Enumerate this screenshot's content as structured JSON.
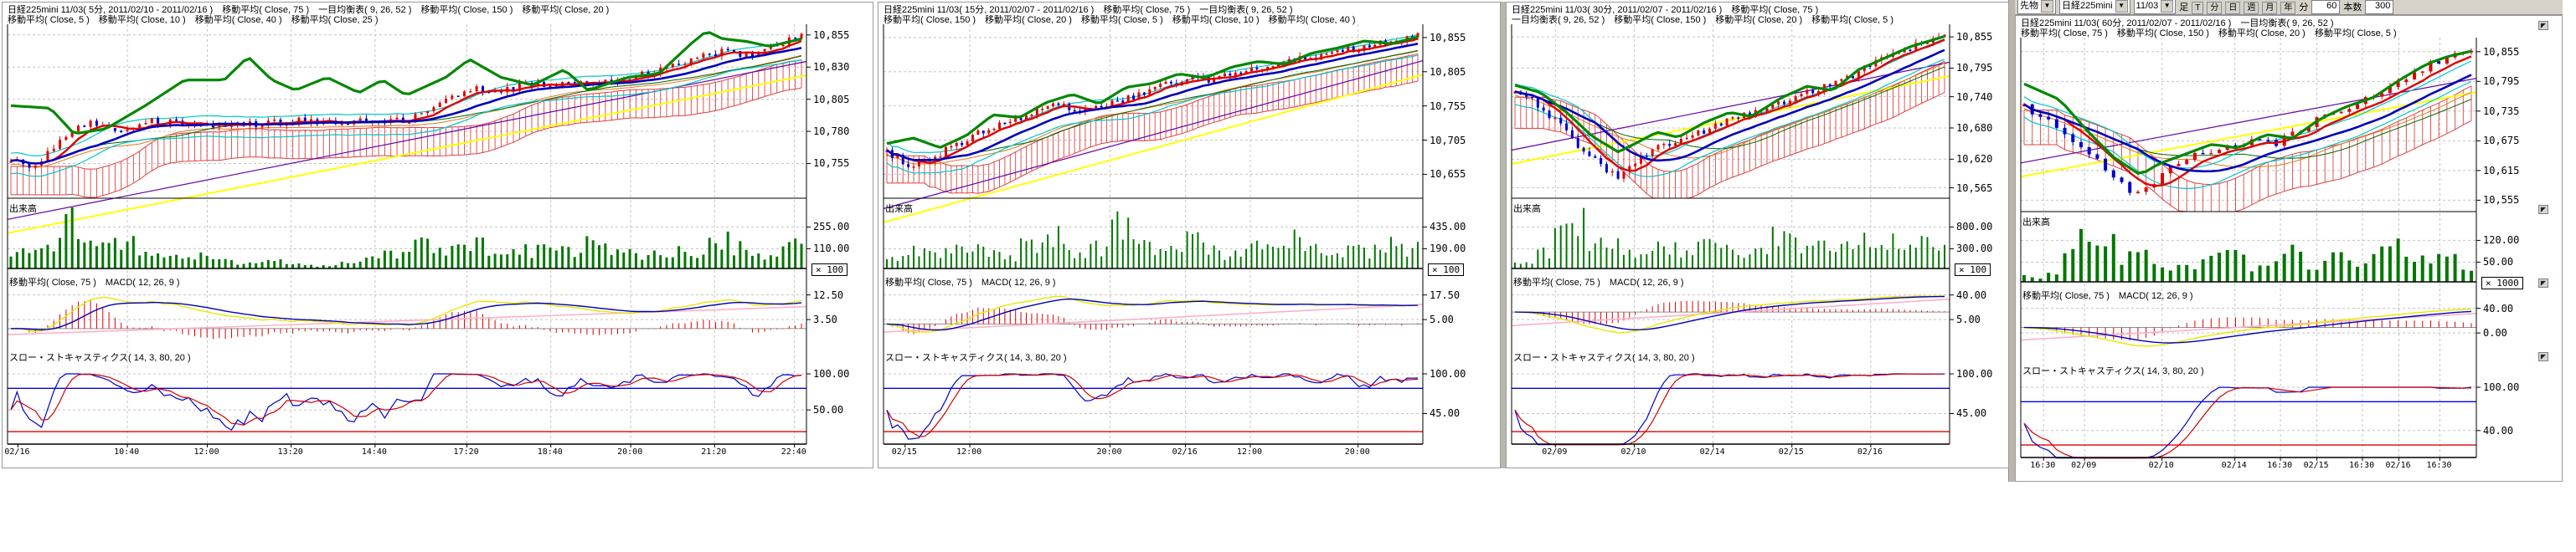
{
  "app": {
    "name": "chart-workspace",
    "background": "#ffffff"
  },
  "toolbar": {
    "category_value": "先物",
    "symbol_value": "日経225mini",
    "contract_value": "11/03",
    "bar_type_label": "足",
    "period_buttons": [
      "T",
      "分",
      "日",
      "週",
      "月",
      "年"
    ],
    "minutes_label": "分",
    "minutes_value": "60",
    "bars_label": "本数",
    "bars_value": "300"
  },
  "panels": [
    {
      "header1": "日経225mini 11/03( 5分, 2011/02/10 - 2011/02/16 )　移動平均( Close, 75 )　一目均衡表( 9, 26, 52 )　移動平均( Close, 150 )　移動平均( Close, 20 )",
      "header2": "移動平均( Close, 5 )　移動平均( Close, 10 )　移動平均( Close, 40 )　移動平均( Close, 25 )",
      "volume_label": "出来高",
      "macd_label": "移動平均( Close, 75 )　MACD( 12, 26, 9 )",
      "stoch_label": "スロー・ストキャスティクス( 14, 3, 80, 20 )",
      "multiplier_badge": "× 100",
      "price_ticks": [
        "10,855",
        "10,830",
        "10,805",
        "10,780",
        "10,755"
      ],
      "volume_ticks": [
        "255.00",
        "110.00"
      ],
      "macd_ticks": [
        "12.50",
        "3.50"
      ],
      "stoch_ticks": [
        "100.00",
        "50.00"
      ],
      "time_labels": [
        "02/16",
        "10:40",
        "12:00",
        "13:20",
        "14:40",
        "17:20",
        "18:40",
        "20:00",
        "21:20",
        "22:40"
      ]
    },
    {
      "header1": "日経225mini 11/03( 15分, 2011/02/07 - 2011/02/16 )　移動平均( Close, 75 )　一目均衡表( 9, 26, 52 )",
      "header2": "移動平均( Close, 150 )　移動平均( Close, 20 )　移動平均( Close, 5 )　移動平均( Close, 10 )　移動平均( Close, 40 )",
      "volume_label": "出来高",
      "macd_label": "移動平均( Close, 75 )　MACD( 12, 26, 9 )",
      "stoch_label": "スロー・ストキャスティクス( 14, 3, 80, 20 )",
      "multiplier_badge": "× 100",
      "price_ticks": [
        "10,855",
        "10,805",
        "10,755",
        "10,705",
        "10,655"
      ],
      "volume_ticks": [
        "435.00",
        "190.00"
      ],
      "macd_ticks": [
        "17.50",
        "5.00"
      ],
      "stoch_ticks": [
        "100.00",
        "45.00"
      ],
      "time_labels": [
        "02/15",
        "12:00",
        "20:00",
        "02/16",
        "12:00",
        "20:00"
      ]
    },
    {
      "header1": "日経225mini 11/03( 30分, 2011/02/07 - 2011/02/16 )　移動平均( Close, 75 )",
      "header2": "一目均衡表( 9, 26, 52 )　移動平均( Close, 150 )　移動平均( Close, 20 )　移動平均( Close, 5 )",
      "volume_label": "出来高",
      "macd_label": "移動平均( Close, 75 )　MACD( 12, 26, 9 )",
      "stoch_label": "スロー・ストキャスティクス( 14, 3, 80, 20 )",
      "multiplier_badge": "× 100",
      "price_ticks": [
        "10,855",
        "10,795",
        "10,740",
        "10,680",
        "10,620",
        "10,565"
      ],
      "volume_ticks": [
        "800.00",
        "300.00"
      ],
      "macd_ticks": [
        "40.00",
        "5.00"
      ],
      "stoch_ticks": [
        "100.00",
        "45.00"
      ],
      "time_labels": [
        "02/09",
        "02/10",
        "02/14",
        "02/15",
        "02/16"
      ]
    },
    {
      "header1": "日経225mini 11/03( 60分, 2011/02/07 - 2011/02/16 )　一目均衡表( 9, 26, 52 )",
      "header2": "移動平均( Close, 75 )　移動平均( Close, 150 )　移動平均( Close, 20 )　移動平均( Close, 5 )",
      "volume_label": "出来高",
      "macd_label": "移動平均( Close, 75 )　MACD( 12, 26, 9 )",
      "stoch_label": "スロー・ストキャスティクス( 14, 3, 80, 20 )",
      "multiplier_badge": "× 1000",
      "price_ticks": [
        "10,855",
        "10,795",
        "10,735",
        "10,675",
        "10,615",
        "10,555"
      ],
      "volume_ticks": [
        "120.00",
        "50.00"
      ],
      "macd_ticks": [
        "40.00",
        "0.00"
      ],
      "stoch_ticks": [
        "100.00",
        "40.00"
      ],
      "time_labels": [
        "16:30",
        "02/09",
        "02/10",
        "02/14",
        "16:30",
        "02/15",
        "16:30",
        "02/16",
        "16:30"
      ]
    }
  ],
  "chart_data": [
    {
      "type": "candlestick+volume+macd+stochastics",
      "symbol": "日経225mini 11/03",
      "interval": "5分",
      "range": "2011/02/10 - 2011/02/16",
      "price_axis": {
        "tick_values": [
          10855,
          10830,
          10805,
          10780,
          10755
        ],
        "view": [
          10862,
          10728
        ]
      },
      "stoch_thresholds": [
        80,
        20
      ],
      "close_anchors": [
        [
          0,
          10760
        ],
        [
          0.03,
          10750
        ],
        [
          0.06,
          10772
        ],
        [
          0.1,
          10788
        ],
        [
          0.14,
          10780
        ],
        [
          0.18,
          10788
        ],
        [
          0.22,
          10786
        ],
        [
          0.27,
          10784
        ],
        [
          0.32,
          10786
        ],
        [
          0.37,
          10788
        ],
        [
          0.42,
          10786
        ],
        [
          0.46,
          10790
        ],
        [
          0.5,
          10788
        ],
        [
          0.54,
          10800
        ],
        [
          0.58,
          10814
        ],
        [
          0.62,
          10812
        ],
        [
          0.66,
          10818
        ],
        [
          0.7,
          10816
        ],
        [
          0.74,
          10818
        ],
        [
          0.78,
          10820
        ],
        [
          0.82,
          10828
        ],
        [
          0.86,
          10836
        ],
        [
          0.9,
          10842
        ],
        [
          0.94,
          10840
        ],
        [
          0.97,
          10848
        ],
        [
          1,
          10854
        ]
      ],
      "green_anchors": [
        [
          0,
          10800
        ],
        [
          0.05,
          10798
        ],
        [
          0.08,
          10778
        ],
        [
          0.12,
          10782
        ],
        [
          0.17,
          10800
        ],
        [
          0.22,
          10820
        ],
        [
          0.27,
          10820
        ],
        [
          0.3,
          10838
        ],
        [
          0.33,
          10820
        ],
        [
          0.36,
          10812
        ],
        [
          0.4,
          10822
        ],
        [
          0.44,
          10810
        ],
        [
          0.47,
          10820
        ],
        [
          0.5,
          10808
        ],
        [
          0.55,
          10822
        ],
        [
          0.58,
          10836
        ],
        [
          0.62,
          10822
        ],
        [
          0.66,
          10816
        ],
        [
          0.7,
          10828
        ],
        [
          0.73,
          10812
        ],
        [
          0.78,
          10822
        ],
        [
          0.82,
          10825
        ],
        [
          0.86,
          10848
        ],
        [
          0.88,
          10858
        ],
        [
          0.9,
          10852
        ],
        [
          0.93,
          10850
        ],
        [
          0.96,
          10846
        ],
        [
          1,
          10852
        ]
      ],
      "volume_profile": [
        30,
        55,
        90,
        40,
        48,
        35,
        20,
        28,
        14,
        10,
        16,
        8,
        6,
        10,
        18,
        26,
        48,
        38,
        60,
        30,
        36,
        42,
        34,
        52,
        44,
        26,
        38,
        30,
        62,
        40,
        28,
        46
      ],
      "time_fracs": [
        0.013,
        0.15,
        0.25,
        0.355,
        0.46,
        0.575,
        0.68,
        0.78,
        0.885,
        0.985
      ],
      "cloud_depth": 22
    },
    {
      "type": "candlestick+volume+macd+stochastics",
      "symbol": "日経225mini 11/03",
      "interval": "15分",
      "range": "2011/02/07 - 2011/02/16",
      "price_axis": {
        "tick_values": [
          10855,
          10805,
          10755,
          10705,
          10655
        ],
        "view": [
          10872,
          10620
        ]
      },
      "stoch_thresholds": [
        80,
        20
      ],
      "close_anchors": [
        [
          0,
          10688
        ],
        [
          0.04,
          10668
        ],
        [
          0.08,
          10678
        ],
        [
          0.14,
          10702
        ],
        [
          0.2,
          10726
        ],
        [
          0.26,
          10740
        ],
        [
          0.32,
          10756
        ],
        [
          0.38,
          10748
        ],
        [
          0.44,
          10762
        ],
        [
          0.5,
          10780
        ],
        [
          0.56,
          10792
        ],
        [
          0.62,
          10794
        ],
        [
          0.68,
          10808
        ],
        [
          0.74,
          10816
        ],
        [
          0.8,
          10826
        ],
        [
          0.86,
          10836
        ],
        [
          0.92,
          10846
        ],
        [
          1,
          10856
        ]
      ],
      "green_anchors": [
        [
          0,
          10700
        ],
        [
          0.05,
          10708
        ],
        [
          0.1,
          10694
        ],
        [
          0.15,
          10712
        ],
        [
          0.2,
          10742
        ],
        [
          0.25,
          10738
        ],
        [
          0.3,
          10760
        ],
        [
          0.35,
          10772
        ],
        [
          0.4,
          10758
        ],
        [
          0.45,
          10782
        ],
        [
          0.5,
          10788
        ],
        [
          0.55,
          10802
        ],
        [
          0.6,
          10796
        ],
        [
          0.65,
          10812
        ],
        [
          0.7,
          10820
        ],
        [
          0.75,
          10816
        ],
        [
          0.8,
          10832
        ],
        [
          0.85,
          10840
        ],
        [
          0.9,
          10850
        ],
        [
          0.95,
          10846
        ],
        [
          1,
          10856
        ]
      ],
      "volume_profile": [
        20,
        40,
        30,
        55,
        35,
        25,
        45,
        70,
        30,
        40,
        90,
        45,
        35,
        55,
        40,
        30,
        50,
        38,
        60,
        42,
        35,
        35,
        48,
        40
      ],
      "time_fracs": [
        0.04,
        0.16,
        0.42,
        0.56,
        0.68,
        0.88
      ],
      "cloud_depth": 40
    },
    {
      "type": "candlestick+volume+macd+stochastics",
      "symbol": "日経225mini 11/03",
      "interval": "30分",
      "range": "2011/02/07 - 2011/02/16",
      "price_axis": {
        "tick_values": [
          10855,
          10795,
          10740,
          10680,
          10620,
          10565
        ],
        "view": [
          10876,
          10545
        ]
      },
      "stoch_thresholds": [
        80,
        20
      ],
      "close_anchors": [
        [
          0,
          10752
        ],
        [
          0.06,
          10722
        ],
        [
          0.12,
          10672
        ],
        [
          0.18,
          10620
        ],
        [
          0.24,
          10586
        ],
        [
          0.28,
          10612
        ],
        [
          0.34,
          10648
        ],
        [
          0.4,
          10656
        ],
        [
          0.46,
          10684
        ],
        [
          0.52,
          10700
        ],
        [
          0.58,
          10712
        ],
        [
          0.64,
          10736
        ],
        [
          0.7,
          10756
        ],
        [
          0.76,
          10768
        ],
        [
          0.82,
          10800
        ],
        [
          0.88,
          10822
        ],
        [
          0.94,
          10840
        ],
        [
          1,
          10856
        ]
      ],
      "green_anchors": [
        [
          0,
          10762
        ],
        [
          0.06,
          10748
        ],
        [
          0.12,
          10710
        ],
        [
          0.18,
          10664
        ],
        [
          0.24,
          10634
        ],
        [
          0.28,
          10650
        ],
        [
          0.33,
          10672
        ],
        [
          0.38,
          10662
        ],
        [
          0.44,
          10690
        ],
        [
          0.5,
          10710
        ],
        [
          0.55,
          10702
        ],
        [
          0.62,
          10738
        ],
        [
          0.68,
          10760
        ],
        [
          0.74,
          10752
        ],
        [
          0.8,
          10792
        ],
        [
          0.86,
          10814
        ],
        [
          0.92,
          10836
        ],
        [
          1,
          10856
        ]
      ],
      "volume_profile": [
        15,
        30,
        70,
        95,
        60,
        45,
        35,
        50,
        40,
        30,
        55,
        45,
        35,
        40,
        60,
        50,
        40,
        55,
        45,
        65,
        50,
        40,
        60,
        35
      ],
      "time_fracs": [
        0.1,
        0.28,
        0.46,
        0.64,
        0.82
      ],
      "cloud_depth": 60
    },
    {
      "type": "candlestick+volume+macd+stochastics",
      "symbol": "日経225mini 11/03",
      "interval": "60分",
      "range": "2011/02/07 - 2011/02/16",
      "price_axis": {
        "tick_values": [
          10855,
          10795,
          10735,
          10675,
          10615,
          10555
        ],
        "view": [
          10880,
          10532
        ]
      },
      "stoch_thresholds": [
        80,
        20
      ],
      "close_anchors": [
        [
          0,
          10742
        ],
        [
          0.08,
          10700
        ],
        [
          0.14,
          10652
        ],
        [
          0.2,
          10600
        ],
        [
          0.26,
          10562
        ],
        [
          0.32,
          10618
        ],
        [
          0.38,
          10648
        ],
        [
          0.44,
          10662
        ],
        [
          0.5,
          10672
        ],
        [
          0.56,
          10668
        ],
        [
          0.62,
          10700
        ],
        [
          0.68,
          10726
        ],
        [
          0.74,
          10748
        ],
        [
          0.8,
          10772
        ],
        [
          0.86,
          10806
        ],
        [
          0.92,
          10834
        ],
        [
          1,
          10856
        ]
      ],
      "green_anchors": [
        [
          0,
          10790
        ],
        [
          0.08,
          10758
        ],
        [
          0.14,
          10696
        ],
        [
          0.2,
          10642
        ],
        [
          0.26,
          10606
        ],
        [
          0.3,
          10628
        ],
        [
          0.36,
          10648
        ],
        [
          0.42,
          10668
        ],
        [
          0.48,
          10660
        ],
        [
          0.54,
          10688
        ],
        [
          0.6,
          10680
        ],
        [
          0.66,
          10718
        ],
        [
          0.72,
          10744
        ],
        [
          0.78,
          10762
        ],
        [
          0.84,
          10798
        ],
        [
          0.9,
          10830
        ],
        [
          0.95,
          10846
        ],
        [
          1,
          10856
        ]
      ],
      "volume_profile": [
        10,
        25,
        60,
        95,
        70,
        45,
        55,
        35,
        30,
        40,
        80,
        50,
        35,
        45,
        55,
        40,
        45,
        35,
        55,
        65,
        45,
        40,
        50,
        30
      ],
      "time_fracs": [
        0.05,
        0.14,
        0.31,
        0.47,
        0.57,
        0.65,
        0.75,
        0.83,
        0.92
      ],
      "cloud_depth": 70
    }
  ],
  "colors": {
    "up_candle": "#e00000",
    "down_candle": "#0000cc",
    "volume_bar": "#007700",
    "ma_green": "#008800",
    "ma_thick_red": "#e00000",
    "ma_thick_blue": "#0000bb",
    "ma_cyan": "#00c8c8",
    "ma_purple": "#6600aa",
    "ma_yellow": "#ffff00",
    "ma_orange": "#e07820",
    "ma_dark_green": "#006600",
    "cloud_red": "#e04040",
    "macd_signal_blue": "#0000bb",
    "macd_yellow": "#e8e800",
    "macd_hist_red": "#e00000",
    "macd_ma_pink": "#ffb0c8",
    "stoch_k_blue": "#0000cc",
    "stoch_d_red": "#d00000",
    "stoch_upper_line": "#0000ee",
    "stoch_lower_line": "#e00000",
    "grid": "#c4c4c4",
    "axis": "#000000"
  }
}
